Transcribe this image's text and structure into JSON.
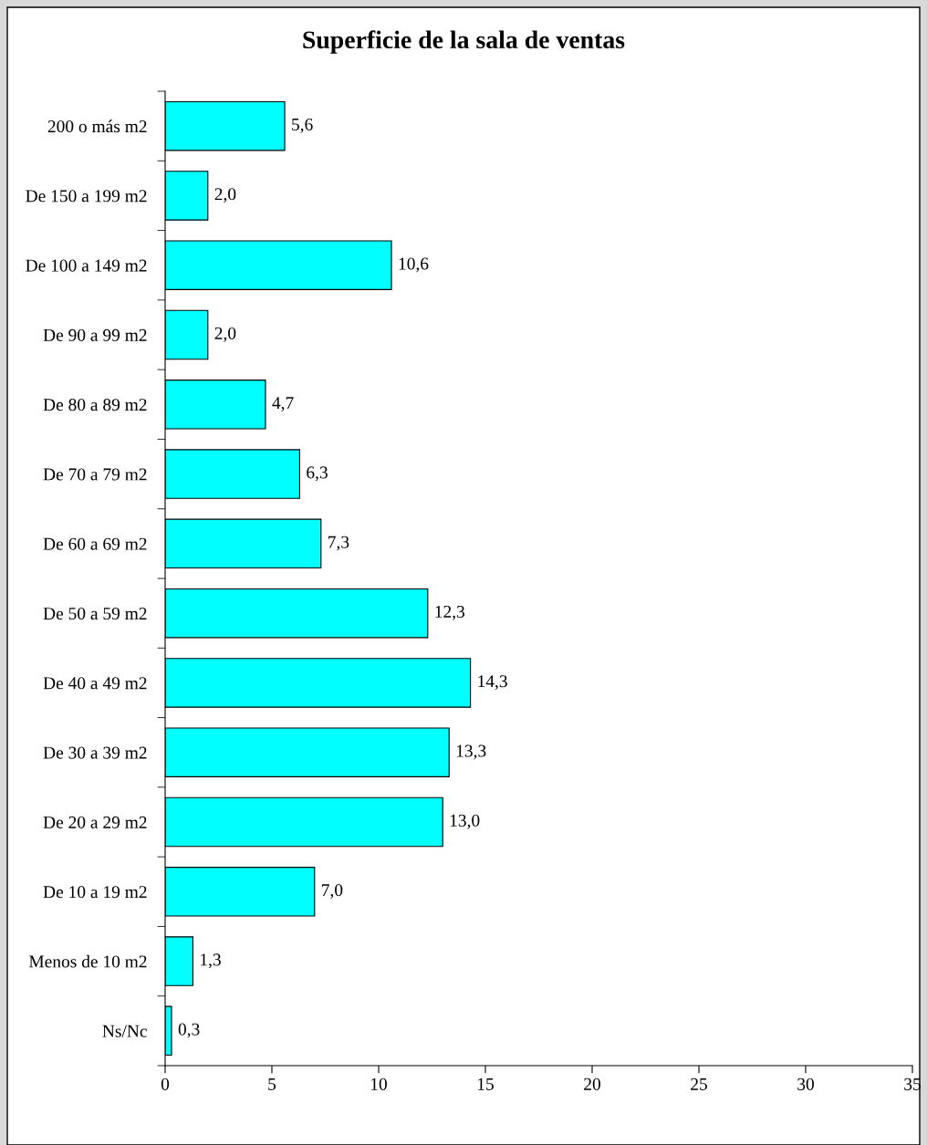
{
  "chart_data": {
    "type": "bar",
    "orientation": "horizontal",
    "title": "Superficie de la sala de ventas",
    "categories": [
      "200 o más m2",
      "De 150 a 199 m2",
      "De 100 a 149 m2",
      "De 90 a 99 m2",
      "De 80 a 89 m2",
      "De 70 a 79 m2",
      "De 60 a 69 m2",
      "De 50 a 59 m2",
      "De 40 a 49 m2",
      "De 30 a 39 m2",
      "De 20 a 29 m2",
      "De 10 a 19 m2",
      "Menos de 10 m2",
      "Ns/Nc"
    ],
    "values": [
      5.6,
      2.0,
      10.6,
      2.0,
      4.7,
      6.3,
      7.3,
      12.3,
      14.3,
      13.3,
      13.0,
      7.0,
      1.3,
      0.3
    ],
    "value_labels": [
      "5,6",
      "2,0",
      "10,6",
      "2,0",
      "4,7",
      "6,3",
      "7,3",
      "12,3",
      "14,3",
      "13,3",
      "13,0",
      "7,0",
      "1,3",
      "0,3"
    ],
    "color": "#00ffff",
    "xlim": [
      0,
      35
    ],
    "xticks": [
      0,
      5,
      10,
      15,
      20,
      25,
      30,
      35
    ],
    "grid": false,
    "legend": false
  }
}
